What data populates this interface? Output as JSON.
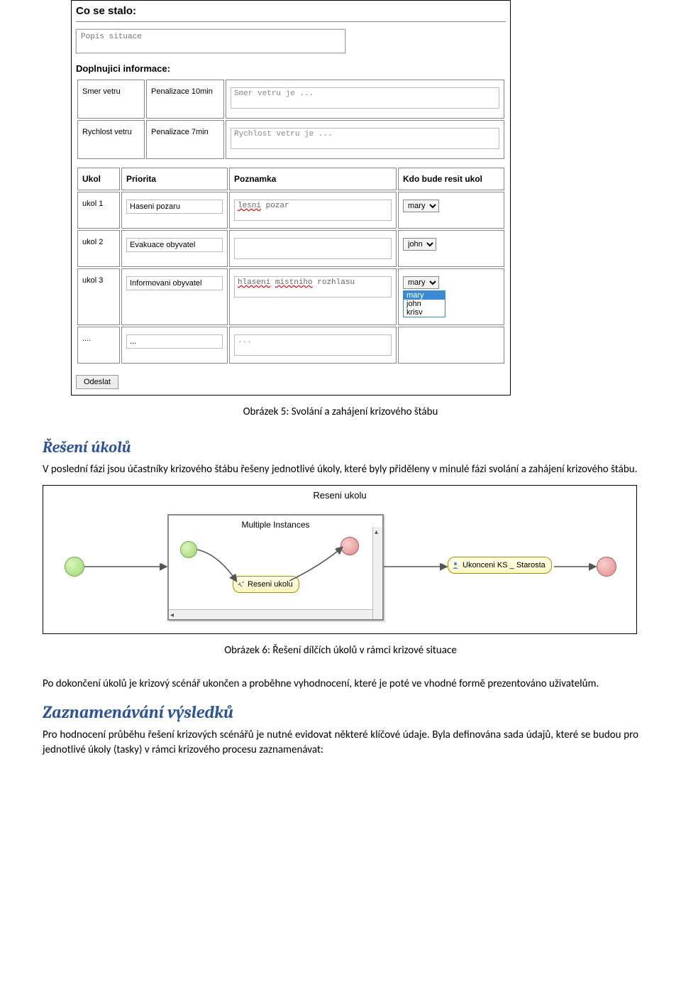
{
  "form": {
    "title": "Co se stalo:",
    "situation_placeholder": "Popis situace",
    "info_label": "Doplnujici informace:",
    "info_rows": [
      {
        "name": "Smer vetru",
        "penalty": "Penalizace 10min",
        "note": "Smer vetru je ..."
      },
      {
        "name": "Rychlost vetru",
        "penalty": "Penalizace 7min",
        "note": "Rychlost vetru je ..."
      }
    ],
    "task_headers": {
      "ukol": "Ukol",
      "priorita": "Priorita",
      "poznamka": "Poznamka",
      "kdo": "Kdo bude resit ukol"
    },
    "tasks": [
      {
        "ukol": "ukol 1",
        "priorita": "Haseni pozaru",
        "poznamka": "lesni pozar",
        "poznamka_typo": [
          "lesni"
        ],
        "kdo": "mary"
      },
      {
        "ukol": "ukol 2",
        "priorita": "Evakuace obyvatel",
        "poznamka": "",
        "kdo": "john"
      },
      {
        "ukol": "ukol 3",
        "priorita": "Informovani obyvatel",
        "poznamka": "hlaseni mistniho rozhlasu",
        "poznamka_typo": [
          "hlaseni",
          "mistniho"
        ],
        "kdo": "mary",
        "dropdown_open": true
      }
    ],
    "empty_row": {
      "ukol": "....",
      "priorita": "...",
      "poznamka": "...",
      "kdo": ""
    },
    "dropdown_options": [
      "mary",
      "john",
      "krisv"
    ],
    "submit_label": "Odeslat"
  },
  "caption1": "Obrázek 5: Svolání a zahájení krizového štábu",
  "section1_title": "Řešení úkolů",
  "section1_para": "V poslední fázi jsou účastníky krizového štábu řešeny jednotlivé úkoly, které byly přiděleny v minulé fázi svolání a zahájení krizového štábu.",
  "diagram": {
    "title": "Reseni ukolu",
    "subproc_title": "Multiple Instances",
    "node_reseni": "Reseni ukolu",
    "node_ukonceni": "Ukonceni KS _ Starosta",
    "colors": {
      "green": "#9ed66c",
      "red": "#e38a8a",
      "node_bg": "#fcf6c4"
    }
  },
  "caption2": "Obrázek 6: Řešení dílčích úkolů v rámci krizové situace",
  "section2_para": "Po dokončení úkolů je krizový scénář ukončen a proběhne vyhodnocení, které je poté ve vhodné formě prezentováno uživatelům.",
  "section3_title": "Zaznamenávání výsledků",
  "section3_para": "Pro hodnocení průběhu řešení krizových scénářů je nutné evidovat některé klíčové údaje. Byla definována sada údajů, které se budou pro jednotlivé úkoly (tasky) v rámci krizového procesu zaznamenávat:"
}
